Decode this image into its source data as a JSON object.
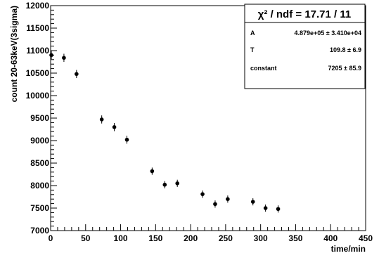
{
  "chart_data": {
    "type": "scatter",
    "xlabel": "time/min",
    "ylabel": "count 20-63keV(3sigma)",
    "xlim": [
      0,
      450
    ],
    "ylim": [
      7000,
      12000
    ],
    "xticks": [
      "0",
      "50",
      "100",
      "150",
      "200",
      "250",
      "300",
      "350",
      "400",
      "450"
    ],
    "yticks": [
      "7000",
      "7500",
      "8000",
      "8500",
      "9000",
      "9500",
      "10000",
      "10500",
      "11000",
      "11500",
      "12000"
    ],
    "series": [
      {
        "type": "scatter",
        "color": "#000000",
        "x": [
          1,
          19,
          37,
          73,
          91,
          109,
          145,
          163,
          181,
          217,
          235,
          253,
          289,
          307,
          325
        ],
        "y": [
          10900,
          10840,
          10480,
          9470,
          9300,
          9020,
          8320,
          8020,
          8050,
          7810,
          7590,
          7700,
          7640,
          7500,
          7480
        ],
        "yerr": [
          90,
          90,
          90,
          90,
          90,
          90,
          80,
          80,
          80,
          80,
          80,
          80,
          80,
          80,
          80
        ]
      },
      {
        "type": "line",
        "color": "#ff00ff",
        "function": "A*exp(-t/T)+constant",
        "x_range": [
          20,
          348
        ]
      }
    ],
    "fit_stats": {
      "title": "χ² / ndf = 17.71 / 11",
      "rows": [
        {
          "name": "A",
          "value": "4.879e+05 ± 3.410e+04"
        },
        {
          "name": "T",
          "value": "109.8 ± 6.9"
        },
        {
          "name": "constant",
          "value": "7205 ± 85.9"
        }
      ],
      "A": 487900,
      "T": 109.8,
      "C": 7205
    }
  }
}
